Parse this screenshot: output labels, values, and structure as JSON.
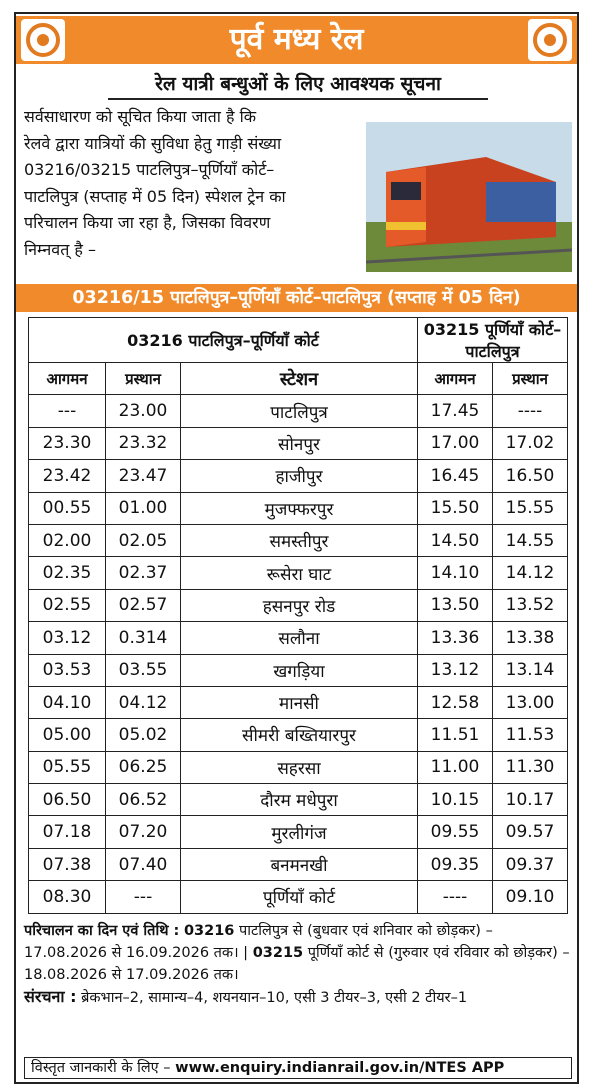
{
  "header": {
    "title": "पूर्व मध्य रेल",
    "subtitle": "रेल यात्री बन्धुओं के लिए आवश्यक सूचना"
  },
  "intro": [
    "सर्वसाधारण को सूचित किया जाता है कि",
    "रेलवे द्वारा यात्रियों की सुविधा हेतु गाड़ी संख्या",
    "03216/03215 पाटलिपुत्र–पूर्णियाँ कोर्ट–",
    "पाटलिपुत्र (सप्ताह में 05 दिन) स्पेशल ट्रेन का",
    "परिचालन  किया जा रहा है, जिसका विवरण",
    "निम्नवत् है –"
  ],
  "banner": "03216/15 पाटलिपुत्र–पूर्णियाँ कोर्ट–पाटलिपुत्र (सप्ताह में 05 दिन)",
  "table": {
    "groups": [
      "03216 पाटलिपुत्र–पूर्णियाँ कोर्ट",
      "03215 पूर्णियाँ कोर्ट–पाटलिपुत्र"
    ],
    "columns": [
      "आगमन",
      "प्रस्थान",
      "स्टेशन",
      "आगमन",
      "प्रस्थान"
    ],
    "rows": [
      [
        "---",
        "23.00",
        "पाटलिपुत्र",
        "17.45",
        "----"
      ],
      [
        "23.30",
        "23.32",
        "सोनपुर",
        "17.00",
        "17.02"
      ],
      [
        "23.42",
        "23.47",
        "हाजीपुर",
        "16.45",
        "16.50"
      ],
      [
        "00.55",
        "01.00",
        "मुजफ्फरपुर",
        "15.50",
        "15.55"
      ],
      [
        "02.00",
        "02.05",
        "समस्तीपुर",
        "14.50",
        "14.55"
      ],
      [
        "02.35",
        "02.37",
        "रूसेरा घाट",
        "14.10",
        "14.12"
      ],
      [
        "02.55",
        "02.57",
        "हसनपुर रोड",
        "13.50",
        "13.52"
      ],
      [
        "03.12",
        "0.314",
        "सलौना",
        "13.36",
        "13.38"
      ],
      [
        "03.53",
        "03.55",
        "खगड़िया",
        "13.12",
        "13.14"
      ],
      [
        "04.10",
        "04.12",
        "मानसी",
        "12.58",
        "13.00"
      ],
      [
        "05.00",
        "05.02",
        "सीमरी बख्तियारपुर",
        "11.51",
        "11.53"
      ],
      [
        "05.55",
        "06.25",
        "सहरसा",
        "11.00",
        "11.30"
      ],
      [
        "06.50",
        "06.52",
        "दौरम मधेपुरा",
        "10.15",
        "10.17"
      ],
      [
        "07.18",
        "07.20",
        "मुरलीगंज",
        "09.55",
        "09.57"
      ],
      [
        "07.38",
        "07.40",
        "बनमनखी",
        "09.35",
        "09.37"
      ],
      [
        "08.30",
        "---",
        "पूर्णियाँ कोर्ट",
        "----",
        "09.10"
      ]
    ]
  },
  "notes": {
    "schedule_label": "परिचालन का दिन एवं तिथि :",
    "train1": "03216",
    "train1_text": " पाटलिपुत्र से (बुधवार एवं शनिवार को छोड़कर) – 17.08.2026 से 16.09.2026 तक।",
    "train2": "03215",
    "train2_text": " पूर्णियाँ कोर्ट से (गुरुवार एवं रविवार को छोड़कर) – 18.08.2026 से 17.09.2026 तक।",
    "composition_label": "संरचना :",
    "composition": " ब्रेकभान–2, सामान्य–4, शयनयान–10, एसी 3 टीयर–3, एसी 2 टीयर–1",
    "info_label": "विस्तृत जानकारी के लिए –",
    "info_url": "www.enquiry.indianrail.gov.in/NTES APP"
  }
}
